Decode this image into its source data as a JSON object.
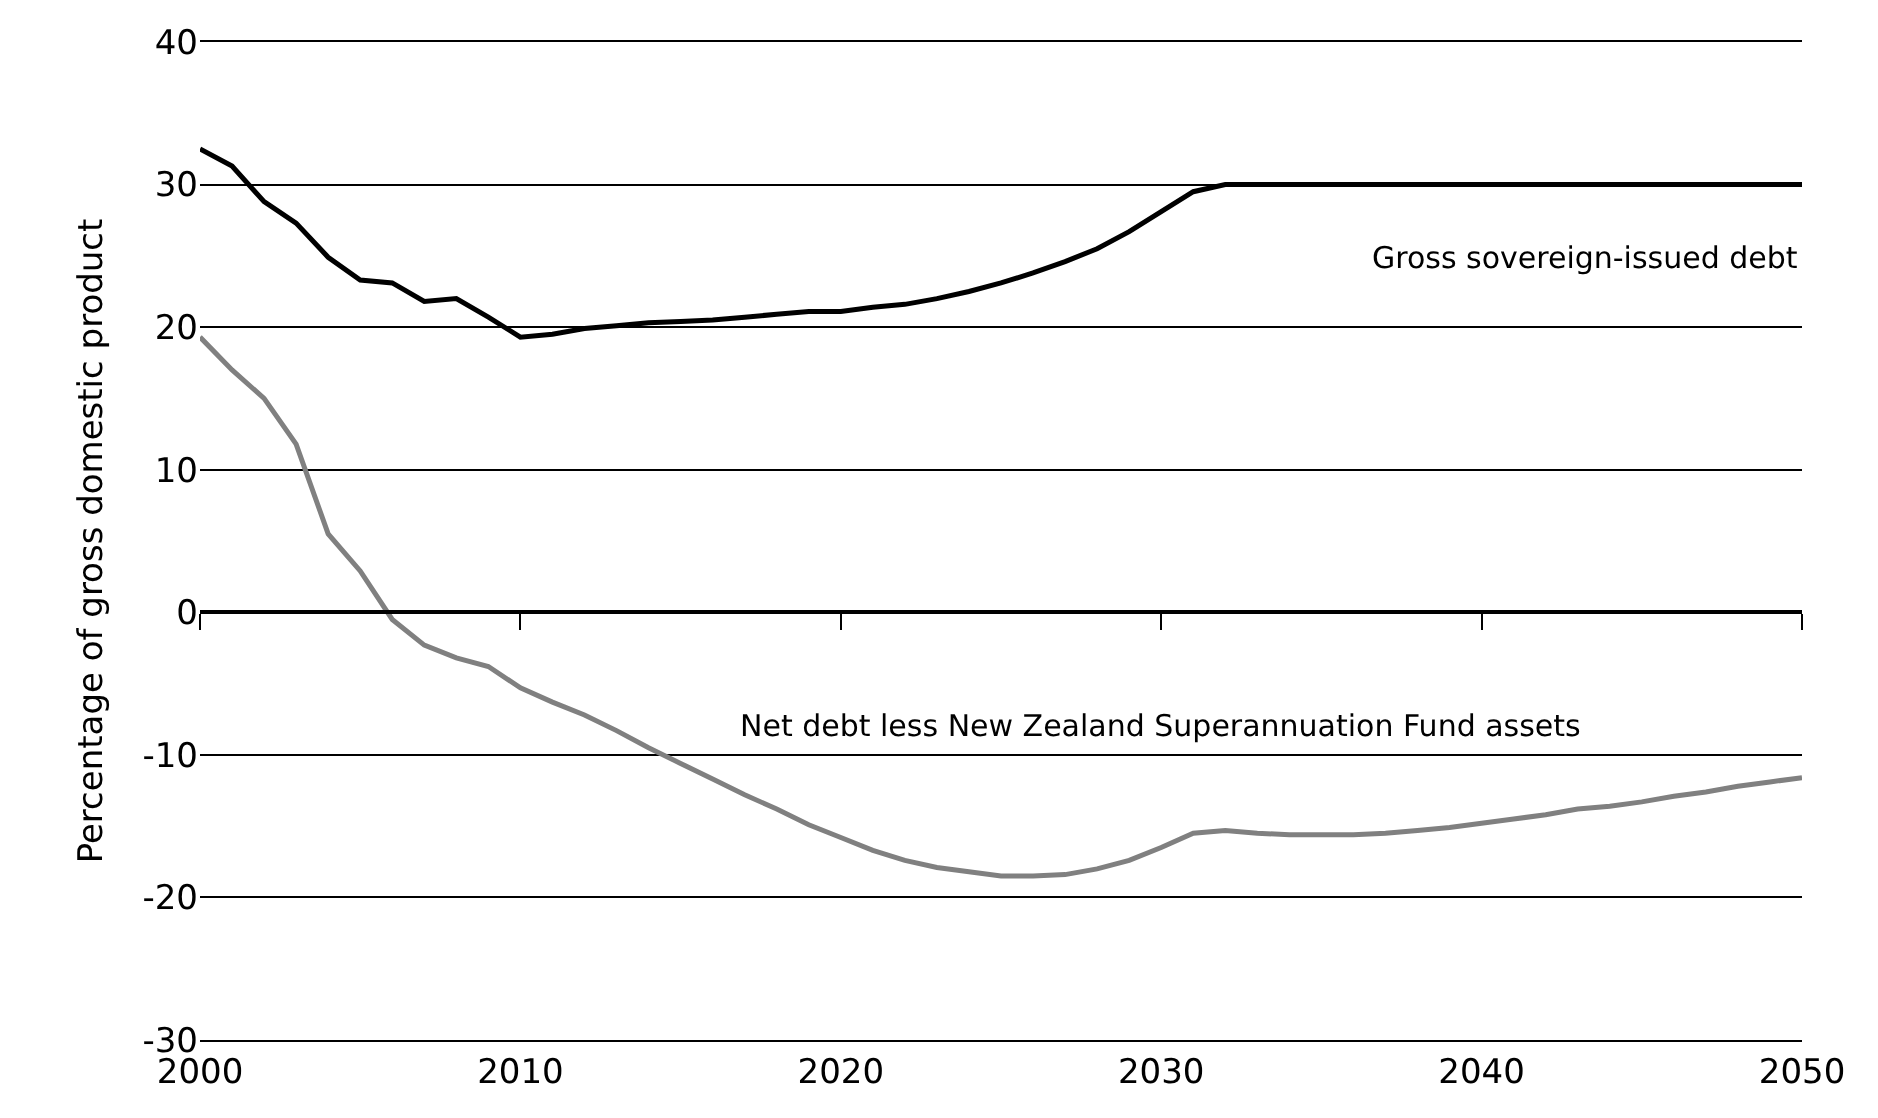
{
  "chart_data": {
    "type": "line",
    "ylabel": "Percentage of gross domestic product",
    "x": [
      2000,
      2001,
      2002,
      2003,
      2004,
      2005,
      2006,
      2007,
      2008,
      2009,
      2010,
      2011,
      2012,
      2013,
      2014,
      2015,
      2016,
      2017,
      2018,
      2019,
      2020,
      2021,
      2022,
      2023,
      2024,
      2025,
      2026,
      2027,
      2028,
      2029,
      2030,
      2031,
      2032,
      2033,
      2034,
      2035,
      2036,
      2037,
      2038,
      2039,
      2040,
      2041,
      2042,
      2043,
      2044,
      2045,
      2046,
      2047,
      2048,
      2049,
      2050
    ],
    "series": [
      {
        "name": "Gross sovereign-issued debt",
        "color": "#000000",
        "values": [
          32.5,
          31.3,
          28.8,
          27.3,
          24.9,
          23.3,
          23.1,
          21.8,
          22.0,
          20.7,
          19.3,
          19.5,
          19.9,
          20.1,
          20.3,
          20.4,
          20.5,
          20.7,
          20.9,
          21.1,
          21.1,
          21.4,
          21.6,
          22.0,
          22.5,
          23.1,
          23.8,
          24.6,
          25.5,
          26.7,
          28.1,
          29.5,
          30.0,
          30.0,
          30.0,
          30.0,
          30.0,
          30.0,
          30.0,
          30.0,
          30.0,
          30.0,
          30.0,
          30.0,
          30.0,
          30.0,
          30.0,
          30.0,
          30.0,
          30.0,
          30.0
        ]
      },
      {
        "name": "Net debt less New Zealand Superannuation Fund assets",
        "color": "#808080",
        "values": [
          19.3,
          17.0,
          15.0,
          11.8,
          5.5,
          2.9,
          -0.5,
          -2.3,
          -3.2,
          -3.8,
          -5.3,
          -6.3,
          -7.2,
          -8.3,
          -9.5,
          -10.6,
          -11.7,
          -12.8,
          -13.8,
          -14.9,
          -15.8,
          -16.7,
          -17.4,
          -17.9,
          -18.2,
          -18.5,
          -18.5,
          -18.4,
          -18.0,
          -17.4,
          -16.5,
          -15.5,
          -15.3,
          -15.5,
          -15.6,
          -15.6,
          -15.6,
          -15.5,
          -15.3,
          -15.1,
          -14.8,
          -14.5,
          -14.2,
          -13.8,
          -13.6,
          -13.3,
          -12.9,
          -12.6,
          -12.2,
          -11.9,
          -11.6
        ]
      }
    ],
    "xlim": [
      2000,
      2050
    ],
    "xticks": [
      2000,
      2010,
      2020,
      2030,
      2040,
      2050
    ],
    "ylim": [
      -30,
      40
    ],
    "yticks": [
      -30,
      -20,
      -10,
      0,
      10,
      20,
      30,
      40
    ],
    "grid": "y",
    "legend": false,
    "marker": "none",
    "line_style": "solid"
  }
}
